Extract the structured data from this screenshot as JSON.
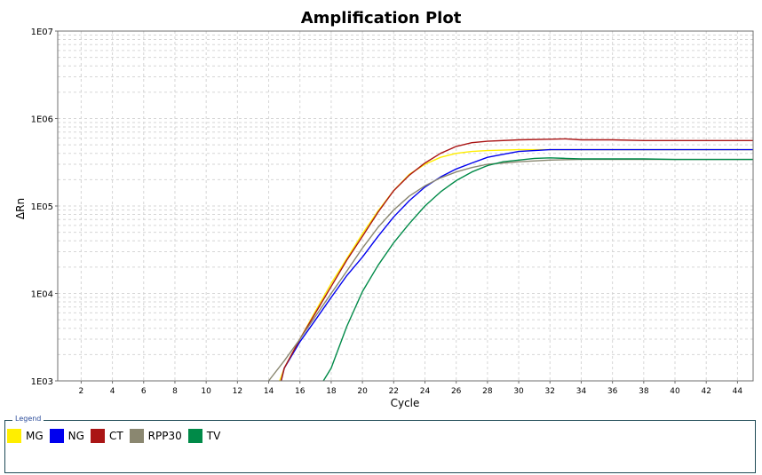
{
  "chart_data": {
    "type": "line",
    "title": "Amplification Plot",
    "xlabel": "Cycle",
    "ylabel": "ΔRn",
    "xlim": [
      0.5,
      45
    ],
    "ylim": [
      1000,
      10000000
    ],
    "yscale": "log",
    "grid": true,
    "legend_title": "Legend",
    "legend_position": "bottom",
    "x_ticks": [
      2,
      4,
      6,
      8,
      10,
      12,
      14,
      16,
      18,
      20,
      22,
      24,
      26,
      28,
      30,
      32,
      34,
      36,
      38,
      40,
      42,
      44
    ],
    "y_ticks": [
      {
        "value": 1000,
        "label": "1E03"
      },
      {
        "value": 10000,
        "label": "1E04"
      },
      {
        "value": 100000,
        "label": "1E05"
      },
      {
        "value": 1000000,
        "label": "1E06"
      },
      {
        "value": 10000000,
        "label": "1E07"
      }
    ],
    "series": [
      {
        "name": "MG",
        "color": "#ffee00",
        "points": [
          [
            14.7,
            1000
          ],
          [
            15,
            1400
          ],
          [
            16,
            3000
          ],
          [
            17,
            6300
          ],
          [
            18,
            13000
          ],
          [
            19,
            25000
          ],
          [
            20,
            48000
          ],
          [
            21,
            88000
          ],
          [
            22,
            150000
          ],
          [
            23,
            230000
          ],
          [
            24,
            300000
          ],
          [
            25,
            360000
          ],
          [
            26,
            400000
          ],
          [
            27,
            420000
          ],
          [
            28,
            430000
          ],
          [
            30,
            440000
          ],
          [
            32,
            440000
          ],
          [
            34,
            440000
          ],
          [
            36,
            440000
          ],
          [
            40,
            440000
          ],
          [
            45,
            440000
          ]
        ]
      },
      {
        "name": "NG",
        "color": "#0000ee",
        "points": [
          [
            14.8,
            1000
          ],
          [
            15,
            1400
          ],
          [
            16,
            2800
          ],
          [
            17,
            5000
          ],
          [
            18,
            9000
          ],
          [
            19,
            16000
          ],
          [
            20,
            26000
          ],
          [
            21,
            45000
          ],
          [
            22,
            75000
          ],
          [
            23,
            115000
          ],
          [
            24,
            165000
          ],
          [
            25,
            215000
          ],
          [
            26,
            265000
          ],
          [
            27,
            310000
          ],
          [
            28,
            360000
          ],
          [
            29,
            390000
          ],
          [
            30,
            420000
          ],
          [
            32,
            440000
          ],
          [
            34,
            440000
          ],
          [
            36,
            440000
          ],
          [
            40,
            440000
          ],
          [
            45,
            440000
          ]
        ]
      },
      {
        "name": "CT",
        "color": "#aa1515",
        "points": [
          [
            14.8,
            1000
          ],
          [
            15,
            1400
          ],
          [
            16,
            3000
          ],
          [
            17,
            6000
          ],
          [
            18,
            12000
          ],
          [
            19,
            24000
          ],
          [
            20,
            45000
          ],
          [
            21,
            85000
          ],
          [
            22,
            150000
          ],
          [
            23,
            225000
          ],
          [
            24,
            310000
          ],
          [
            25,
            400000
          ],
          [
            26,
            480000
          ],
          [
            27,
            530000
          ],
          [
            28,
            550000
          ],
          [
            30,
            570000
          ],
          [
            32,
            580000
          ],
          [
            33,
            585000
          ],
          [
            34,
            570000
          ],
          [
            36,
            570000
          ],
          [
            38,
            560000
          ],
          [
            40,
            560000
          ],
          [
            45,
            560000
          ]
        ]
      },
      {
        "name": "RPP30",
        "color": "#8a8770",
        "points": [
          [
            14,
            1000
          ],
          [
            15,
            1700
          ],
          [
            16,
            3000
          ],
          [
            17,
            5500
          ],
          [
            18,
            10000
          ],
          [
            19,
            18000
          ],
          [
            20,
            33000
          ],
          [
            21,
            57000
          ],
          [
            22,
            90000
          ],
          [
            23,
            130000
          ],
          [
            24,
            170000
          ],
          [
            25,
            210000
          ],
          [
            26,
            245000
          ],
          [
            27,
            275000
          ],
          [
            28,
            300000
          ],
          [
            30,
            320000
          ],
          [
            32,
            335000
          ],
          [
            34,
            340000
          ],
          [
            36,
            340000
          ],
          [
            40,
            340000
          ],
          [
            45,
            340000
          ]
        ]
      },
      {
        "name": "TV",
        "color": "#008a48",
        "points": [
          [
            17.5,
            1000
          ],
          [
            18,
            1400
          ],
          [
            19,
            4200
          ],
          [
            20,
            10500
          ],
          [
            21,
            21000
          ],
          [
            22,
            38000
          ],
          [
            23,
            63000
          ],
          [
            24,
            100000
          ],
          [
            25,
            145000
          ],
          [
            26,
            195000
          ],
          [
            27,
            245000
          ],
          [
            28,
            290000
          ],
          [
            29,
            320000
          ],
          [
            30,
            335000
          ],
          [
            31,
            350000
          ],
          [
            32,
            355000
          ],
          [
            33,
            350000
          ],
          [
            34,
            345000
          ],
          [
            36,
            345000
          ],
          [
            38,
            345000
          ],
          [
            40,
            340000
          ],
          [
            45,
            340000
          ]
        ]
      }
    ]
  }
}
